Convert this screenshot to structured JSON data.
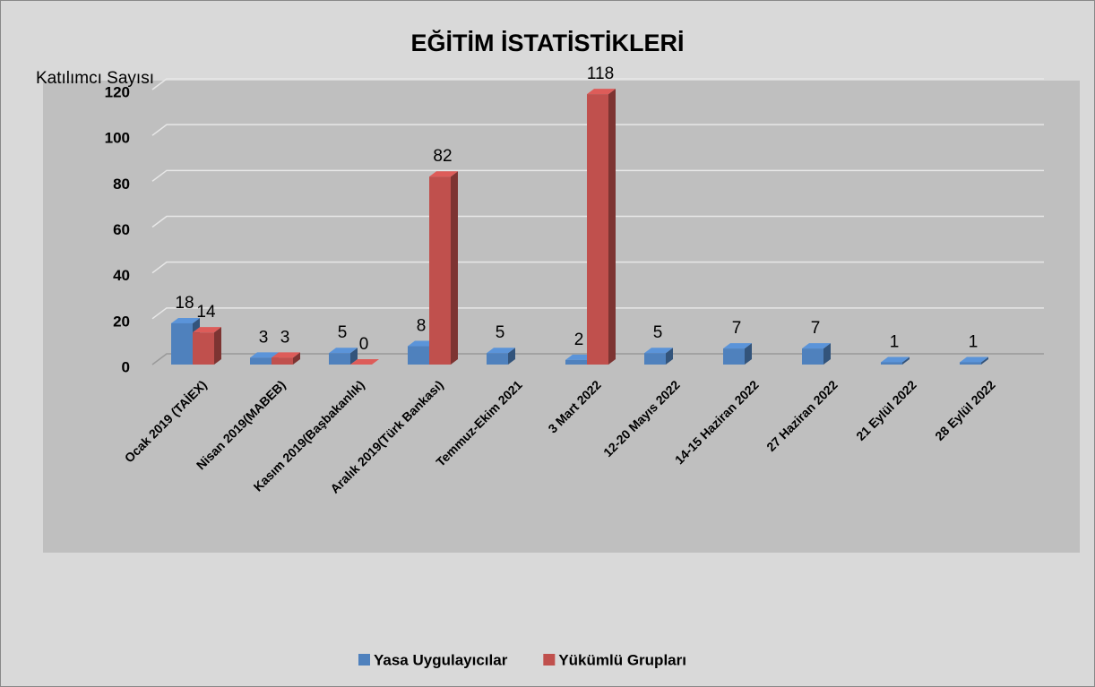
{
  "chart_data": {
    "type": "bar3d",
    "title": "EĞİTİM İSTATİSTİKLERİ",
    "y_label": "Katılımcı Sayısı",
    "categories": [
      "Ocak 2019 (TAİEX)",
      "Nisan 2019(MABEB)",
      "Kasım 2019(Başbakanlık)",
      "Aralık 2019(Türk Bankası)",
      "Temmuz-Ekim 2021",
      "3 Mart 2022",
      "12-20 Mayıs 2022",
      "14-15 Haziran 2022",
      "27 Haziran 2022",
      "21 Eylül 2022",
      "28 Eylül 2022"
    ],
    "series": [
      {
        "name": "Yasa Uygulayıcılar",
        "color": "#4f81bd",
        "values": [
          18,
          3,
          5,
          8,
          5,
          2,
          5,
          7,
          7,
          1,
          1
        ]
      },
      {
        "name": "Yükümlü Grupları",
        "color": "#c0504d",
        "values": [
          14,
          3,
          0,
          82,
          null,
          118,
          null,
          null,
          null,
          null,
          null
        ]
      }
    ],
    "ylim": [
      0,
      120
    ],
    "yticks": [
      0,
      20,
      40,
      60,
      80,
      100,
      120
    ],
    "grid": true,
    "legend": "bottom"
  }
}
